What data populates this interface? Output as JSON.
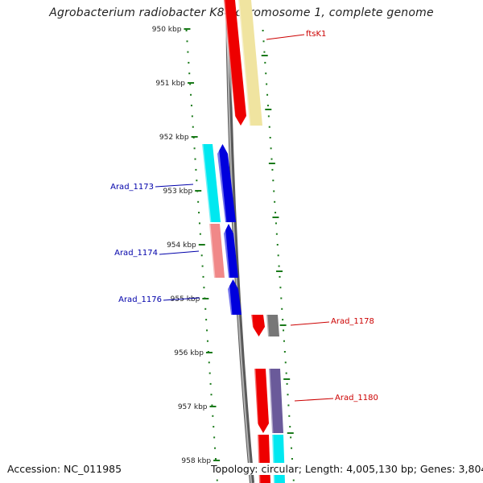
{
  "title": "Agrobacterium radiobacter K84 chromosome 1, complete genome",
  "footer": {
    "accession": "Accession: NC_011985",
    "summary": "Topology: circular; Length: 4,005,130 bp; Genes: 3,804"
  },
  "colors": {
    "backbone": "#888888",
    "tick": "#1a7a1a",
    "label_plus": "#cc0000",
    "label_minus": "#0000aa"
  },
  "ticks": [
    "950 kbp",
    "951 kbp",
    "952 kbp",
    "953 kbp",
    "954 kbp",
    "955 kbp",
    "956 kbp",
    "957 kbp",
    "958 kbp"
  ],
  "genes": [
    {
      "name": "ftsK1",
      "strand": "+",
      "color": "#ee0000"
    },
    {
      "name": "",
      "strand": "+",
      "color": "#f0e4a0"
    },
    {
      "name": "Arad_1173",
      "strand": "-",
      "color": "#00e8f0"
    },
    {
      "name": "",
      "strand": "-",
      "color": "#0000dd"
    },
    {
      "name": "Arad_1174",
      "strand": "-",
      "color": "#f08888"
    },
    {
      "name": "",
      "strand": "-",
      "color": "#0000dd"
    },
    {
      "name": "Arad_1176",
      "strand": "-",
      "color": "#0000dd"
    },
    {
      "name": "Arad_1178",
      "strand": "+",
      "color": "#ee0000"
    },
    {
      "name": "",
      "strand": "+",
      "color": "#777777"
    },
    {
      "name": "Arad_1180",
      "strand": "+",
      "color": "#ee0000"
    },
    {
      "name": "",
      "strand": "+",
      "color": "#6a5a9a"
    },
    {
      "name": "",
      "strand": "+",
      "color": "#ee0000"
    },
    {
      "name": "",
      "strand": "+",
      "color": "#00e8f0"
    }
  ]
}
